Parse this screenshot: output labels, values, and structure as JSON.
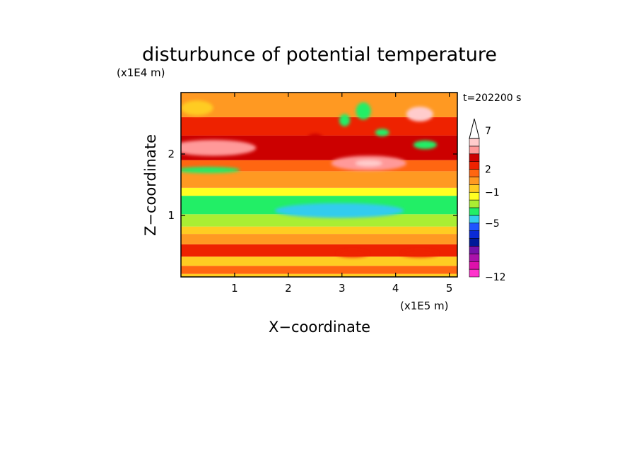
{
  "chart_data": {
    "type": "heatmap",
    "title": "disturbunce of potential temperature",
    "xlabel": "X−coordinate",
    "ylabel": "Z−coordinate",
    "x_unit": "(x1E5 m)",
    "y_unit": "(x1E4 m)",
    "time_label": "t=202200 s",
    "xlim": [
      0,
      5.15
    ],
    "ylim": [
      0,
      3.0
    ],
    "x_ticks": [
      1,
      2,
      3,
      4,
      5
    ],
    "y_ticks": [
      1,
      2
    ],
    "x_tick_labels": [
      "1",
      "2",
      "3",
      "4",
      "5"
    ],
    "y_tick_labels": [
      "1",
      "2"
    ],
    "colorbar": {
      "levels": [
        -12,
        -11,
        -10,
        -9,
        -8,
        -7,
        -6,
        -5,
        -4,
        -3,
        -2,
        -1,
        0,
        1,
        2,
        3,
        4,
        5,
        6,
        7,
        8,
        9
      ],
      "colors": [
        "#ff33cc",
        "#dd11aa",
        "#aa11aa",
        "#7711aa",
        "#001a99",
        "#0a2ad6",
        "#1f55ff",
        "#33ccee",
        "#22ee66",
        "#aaee33",
        "#ffff22",
        "#ffcc22",
        "#ff9922",
        "#ff6611",
        "#ee2200",
        "#cc0000",
        "#ff9999",
        "#ffcccc"
      ],
      "tick_labels": [
        "−12",
        "−5",
        "−1",
        "2",
        "7"
      ],
      "tick_values": [
        -12,
        -5,
        -1,
        2,
        7
      ],
      "extend": "max"
    },
    "bands": [
      {
        "z": [
          0.0,
          0.05
        ],
        "level": -1
      },
      {
        "z": [
          0.05,
          0.18
        ],
        "level": 1
      },
      {
        "z": [
          0.18,
          0.33
        ],
        "level": -1
      },
      {
        "z": [
          0.33,
          0.53
        ],
        "level": 2
      },
      {
        "z": [
          0.53,
          0.7
        ],
        "level": 0
      },
      {
        "z": [
          0.7,
          0.82
        ],
        "level": -1
      },
      {
        "z": [
          0.82,
          1.02
        ],
        "level": -3
      },
      {
        "z": [
          1.02,
          1.32
        ],
        "level": -4
      },
      {
        "z": [
          1.32,
          1.45
        ],
        "level": -2
      },
      {
        "z": [
          1.45,
          1.72
        ],
        "level": 0
      },
      {
        "z": [
          1.72,
          1.9
        ],
        "level": 1
      },
      {
        "z": [
          1.9,
          2.3
        ],
        "level": 3
      },
      {
        "z": [
          2.3,
          2.6
        ],
        "level": 2
      },
      {
        "z": [
          2.6,
          3.0
        ],
        "level": 0
      }
    ],
    "features": [
      {
        "x": 0.6,
        "z": 2.1,
        "rx": 0.8,
        "rz": 0.13,
        "level": 4
      },
      {
        "x": 0.5,
        "z": 1.74,
        "rx": 0.6,
        "rz": 0.05,
        "level": -4
      },
      {
        "x": 3.5,
        "z": 1.85,
        "rx": 0.7,
        "rz": 0.12,
        "level": 4
      },
      {
        "x": 3.5,
        "z": 1.85,
        "rx": 0.25,
        "rz": 0.05,
        "level": 6
      },
      {
        "x": 4.45,
        "z": 2.65,
        "rx": 0.25,
        "rz": 0.12,
        "level": 5
      },
      {
        "x": 4.5,
        "z": 2.62,
        "rx": 0.08,
        "rz": 0.05,
        "level": 6
      },
      {
        "x": 3.4,
        "z": 2.7,
        "rx": 0.14,
        "rz": 0.14,
        "level": -4
      },
      {
        "x": 3.05,
        "z": 2.55,
        "rx": 0.1,
        "rz": 0.1,
        "level": -4
      },
      {
        "x": 3.75,
        "z": 2.35,
        "rx": 0.13,
        "rz": 0.06,
        "level": -4
      },
      {
        "x": 4.55,
        "z": 2.15,
        "rx": 0.22,
        "rz": 0.07,
        "level": -4
      },
      {
        "x": 2.5,
        "z": 2.25,
        "rx": 0.15,
        "rz": 0.08,
        "level": 3
      },
      {
        "x": 2.95,
        "z": 1.08,
        "rx": 1.2,
        "rz": 0.12,
        "level": -5
      },
      {
        "x": 0.3,
        "z": 2.75,
        "rx": 0.3,
        "rz": 0.12,
        "level": -1
      },
      {
        "x": 3.2,
        "z": 0.38,
        "rx": 0.3,
        "rz": 0.06,
        "level": 2
      },
      {
        "x": 4.45,
        "z": 0.38,
        "rx": 0.35,
        "rz": 0.06,
        "level": 2
      }
    ]
  }
}
